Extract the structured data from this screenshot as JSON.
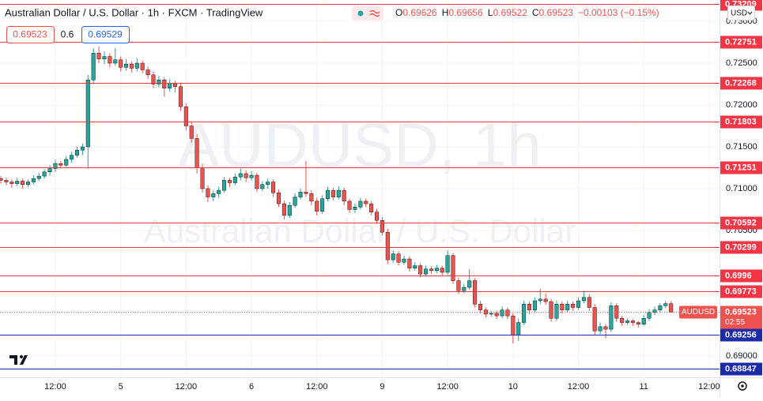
{
  "chart_data": {
    "type": "candlestick",
    "title": "Australian Dollar / U.S. Dollar · 1h · FXCM · TradingView",
    "readout": [
      [
        "O",
        "0.69626"
      ],
      [
        "H",
        "0.69656"
      ],
      [
        "L",
        "0.69522"
      ],
      [
        "C",
        "0.69523"
      ]
    ],
    "change": "−0.00103 (−0.15%)",
    "toolbar": {
      "sell": "0.69523",
      "spread": "0.6",
      "buy": "0.69529"
    },
    "currency": "USD",
    "watermark": [
      "AUDUSD, 1h",
      "Australian Dollar / U.S. Dollar"
    ],
    "up_color": "#26a69a",
    "down_color": "#ef5350",
    "grid": true,
    "xlim": [
      -0.15,
      131.9
    ],
    "xticks": [
      {
        "value": 10,
        "label": "12:00"
      },
      {
        "value": 22,
        "label": "5"
      },
      {
        "value": 34,
        "label": "12:00"
      },
      {
        "value": 46,
        "label": "6"
      },
      {
        "value": 58,
        "label": "12:00"
      },
      {
        "value": 70,
        "label": "9"
      },
      {
        "value": 82,
        "label": "12:00"
      },
      {
        "value": 94,
        "label": "10"
      },
      {
        "value": 106,
        "label": "12:00"
      },
      {
        "value": 118,
        "label": "11"
      },
      {
        "value": 130,
        "label": "12:00"
      }
    ],
    "ylim": [
      0.68745,
      0.73255
    ],
    "yticks": [
      {
        "value": 0.73,
        "label": "0.73000"
      },
      {
        "value": 0.725,
        "label": "0.72500"
      },
      {
        "value": 0.72,
        "label": "0.72000"
      },
      {
        "value": 0.715,
        "label": "0.71500"
      },
      {
        "value": 0.71,
        "label": "0.71000"
      },
      {
        "value": 0.705,
        "label": "0.70500"
      },
      {
        "value": 0.69,
        "label": "0.69000"
      }
    ],
    "levels": [
      {
        "value": 0.73209,
        "color": "#f23645"
      },
      {
        "value": 0.72751,
        "color": "#f23645"
      },
      {
        "value": 0.72268,
        "color": "#f23645"
      },
      {
        "value": 0.71803,
        "color": "#f23645"
      },
      {
        "value": 0.71251,
        "color": "#f23645"
      },
      {
        "value": 0.70592,
        "color": "#f23645"
      },
      {
        "value": 0.70299,
        "color": "#f23645"
      },
      {
        "value": 0.6996,
        "color": "#f23645"
      },
      {
        "value": 0.69773,
        "color": "#f23645"
      },
      {
        "value": 0.69256,
        "color": "#1a2ba8"
      },
      {
        "value": 0.68847,
        "color": "#1a2ba8"
      }
    ],
    "last": {
      "name": "AUDUSD",
      "value": 0.69523,
      "countdown": "02:55"
    },
    "ohlc": [
      [
        0.7112,
        0.7115,
        0.7106,
        0.711
      ],
      [
        0.711,
        0.7113,
        0.7104,
        0.7108
      ],
      [
        0.7108,
        0.7111,
        0.7101,
        0.7106
      ],
      [
        0.7106,
        0.7113,
        0.7103,
        0.7109
      ],
      [
        0.7109,
        0.7112,
        0.71,
        0.7105
      ],
      [
        0.7105,
        0.7111,
        0.7102,
        0.7108
      ],
      [
        0.7108,
        0.7116,
        0.7105,
        0.7112
      ],
      [
        0.7112,
        0.7119,
        0.7109,
        0.7115
      ],
      [
        0.7115,
        0.7123,
        0.7112,
        0.712
      ],
      [
        0.712,
        0.7128,
        0.7116,
        0.7124
      ],
      [
        0.7124,
        0.7135,
        0.712,
        0.713
      ],
      [
        0.713,
        0.7133,
        0.7124,
        0.7128
      ],
      [
        0.7128,
        0.7139,
        0.7126,
        0.7135
      ],
      [
        0.7135,
        0.7144,
        0.7131,
        0.714
      ],
      [
        0.714,
        0.715,
        0.7137,
        0.7146
      ],
      [
        0.7146,
        0.7154,
        0.714,
        0.715
      ],
      [
        0.715,
        0.7236,
        0.7124,
        0.723
      ],
      [
        0.723,
        0.7268,
        0.7226,
        0.7262
      ],
      [
        0.7262,
        0.727,
        0.725,
        0.7255
      ],
      [
        0.7255,
        0.7264,
        0.7249,
        0.7258
      ],
      [
        0.7258,
        0.7262,
        0.7245,
        0.725
      ],
      [
        0.725,
        0.7268,
        0.7247,
        0.7254
      ],
      [
        0.7254,
        0.7258,
        0.724,
        0.7245
      ],
      [
        0.7245,
        0.7255,
        0.7241,
        0.7249
      ],
      [
        0.7249,
        0.7252,
        0.7239,
        0.7244
      ],
      [
        0.7244,
        0.7256,
        0.724,
        0.725
      ],
      [
        0.725,
        0.7253,
        0.7238,
        0.7242
      ],
      [
        0.7242,
        0.7246,
        0.7231,
        0.7236
      ],
      [
        0.7236,
        0.724,
        0.722,
        0.7225
      ],
      [
        0.7225,
        0.7235,
        0.7221,
        0.723
      ],
      [
        0.723,
        0.7233,
        0.721,
        0.722
      ],
      [
        0.722,
        0.7231,
        0.7216,
        0.7226
      ],
      [
        0.7226,
        0.7229,
        0.7215,
        0.7222
      ],
      [
        0.7222,
        0.7226,
        0.7193,
        0.7198
      ],
      [
        0.7198,
        0.7202,
        0.717,
        0.7175
      ],
      [
        0.7175,
        0.718,
        0.7155,
        0.716
      ],
      [
        0.716,
        0.7165,
        0.7118,
        0.7125
      ],
      [
        0.7125,
        0.713,
        0.7095,
        0.71
      ],
      [
        0.71,
        0.7104,
        0.7084,
        0.709
      ],
      [
        0.709,
        0.7098,
        0.7085,
        0.7094
      ],
      [
        0.7094,
        0.7102,
        0.7089,
        0.7098
      ],
      [
        0.7098,
        0.7114,
        0.7095,
        0.711
      ],
      [
        0.711,
        0.7113,
        0.7102,
        0.7107
      ],
      [
        0.7107,
        0.7118,
        0.7104,
        0.7114
      ],
      [
        0.7114,
        0.7124,
        0.711,
        0.7118
      ],
      [
        0.7118,
        0.7122,
        0.7108,
        0.7113
      ],
      [
        0.7113,
        0.7121,
        0.711,
        0.7116
      ],
      [
        0.7116,
        0.7119,
        0.7096,
        0.71
      ],
      [
        0.71,
        0.7109,
        0.7097,
        0.7105
      ],
      [
        0.7105,
        0.7112,
        0.71,
        0.7108
      ],
      [
        0.7108,
        0.7111,
        0.709,
        0.7095
      ],
      [
        0.7095,
        0.7099,
        0.7078,
        0.7082
      ],
      [
        0.7082,
        0.7086,
        0.7063,
        0.7068
      ],
      [
        0.7068,
        0.7084,
        0.7065,
        0.708
      ],
      [
        0.708,
        0.7094,
        0.7077,
        0.709
      ],
      [
        0.709,
        0.71,
        0.7087,
        0.7096
      ],
      [
        0.7096,
        0.7133,
        0.709,
        0.7094
      ],
      [
        0.7094,
        0.7098,
        0.708,
        0.7085
      ],
      [
        0.7085,
        0.7089,
        0.7068,
        0.7073
      ],
      [
        0.7073,
        0.7092,
        0.707,
        0.7088
      ],
      [
        0.7088,
        0.7102,
        0.7085,
        0.7098
      ],
      [
        0.7098,
        0.7101,
        0.7086,
        0.709
      ],
      [
        0.709,
        0.7103,
        0.7087,
        0.7098
      ],
      [
        0.7098,
        0.7101,
        0.708,
        0.7085
      ],
      [
        0.7085,
        0.7088,
        0.7071,
        0.7075
      ],
      [
        0.7075,
        0.7082,
        0.7071,
        0.7078
      ],
      [
        0.7078,
        0.7089,
        0.7075,
        0.7085
      ],
      [
        0.7085,
        0.7088,
        0.7078,
        0.7082
      ],
      [
        0.7082,
        0.7085,
        0.7068,
        0.7072
      ],
      [
        0.7072,
        0.7076,
        0.7058,
        0.7062
      ],
      [
        0.7062,
        0.7066,
        0.7044,
        0.7048
      ],
      [
        0.7048,
        0.7052,
        0.701,
        0.7015
      ],
      [
        0.7015,
        0.7026,
        0.7011,
        0.7022
      ],
      [
        0.7022,
        0.7025,
        0.7008,
        0.7012
      ],
      [
        0.7012,
        0.702,
        0.7009,
        0.7016
      ],
      [
        0.7016,
        0.7019,
        0.7001,
        0.7005
      ],
      [
        0.7005,
        0.7012,
        0.7002,
        0.7008
      ],
      [
        0.7008,
        0.7011,
        0.6994,
        0.6998
      ],
      [
        0.6998,
        0.7008,
        0.6995,
        0.7004
      ],
      [
        0.7004,
        0.7007,
        0.6998,
        0.7002
      ],
      [
        0.7002,
        0.7009,
        0.6999,
        0.7005
      ],
      [
        0.7005,
        0.7008,
        0.6996,
        0.7
      ],
      [
        0.7,
        0.7026,
        0.6997,
        0.702
      ],
      [
        0.702,
        0.7023,
        0.6986,
        0.699
      ],
      [
        0.699,
        0.6994,
        0.6974,
        0.6978
      ],
      [
        0.6978,
        0.6986,
        0.6975,
        0.6982
      ],
      [
        0.6982,
        0.7004,
        0.6979,
        0.699
      ],
      [
        0.699,
        0.6993,
        0.6958,
        0.6962
      ],
      [
        0.6962,
        0.6966,
        0.6951,
        0.6955
      ],
      [
        0.6955,
        0.6958,
        0.6946,
        0.695
      ],
      [
        0.695,
        0.6954,
        0.6947,
        0.6951
      ],
      [
        0.6951,
        0.6954,
        0.6944,
        0.6948
      ],
      [
        0.6948,
        0.6959,
        0.6945,
        0.6955
      ],
      [
        0.6955,
        0.6958,
        0.6944,
        0.6948
      ],
      [
        0.6948,
        0.6951,
        0.6915,
        0.6925
      ],
      [
        0.6925,
        0.6945,
        0.6918,
        0.694
      ],
      [
        0.694,
        0.6966,
        0.6937,
        0.6962
      ],
      [
        0.6962,
        0.6965,
        0.695,
        0.6955
      ],
      [
        0.6955,
        0.697,
        0.6952,
        0.6966
      ],
      [
        0.6966,
        0.698,
        0.6962,
        0.6968
      ],
      [
        0.6968,
        0.6975,
        0.6961,
        0.6965
      ],
      [
        0.6965,
        0.6968,
        0.6941,
        0.6945
      ],
      [
        0.6945,
        0.6966,
        0.6942,
        0.6962
      ],
      [
        0.6962,
        0.6965,
        0.6951,
        0.6955
      ],
      [
        0.6955,
        0.6966,
        0.6952,
        0.6962
      ],
      [
        0.6962,
        0.6965,
        0.6954,
        0.6958
      ],
      [
        0.6958,
        0.697,
        0.6955,
        0.6966
      ],
      [
        0.6966,
        0.6978,
        0.6963,
        0.697
      ],
      [
        0.697,
        0.6974,
        0.6954,
        0.6958
      ],
      [
        0.6958,
        0.6962,
        0.6925,
        0.693
      ],
      [
        0.693,
        0.694,
        0.6926,
        0.6935
      ],
      [
        0.6935,
        0.6938,
        0.6921,
        0.6932
      ],
      [
        0.6932,
        0.6964,
        0.6929,
        0.696
      ],
      [
        0.696,
        0.6963,
        0.6941,
        0.6945
      ],
      [
        0.6945,
        0.6948,
        0.6936,
        0.694
      ],
      [
        0.694,
        0.6945,
        0.6937,
        0.6942
      ],
      [
        0.6942,
        0.6944,
        0.6936,
        0.694
      ],
      [
        0.694,
        0.6942,
        0.6934,
        0.6938
      ],
      [
        0.6938,
        0.6949,
        0.6936,
        0.6945
      ],
      [
        0.6945,
        0.6956,
        0.6942,
        0.6952
      ],
      [
        0.6952,
        0.6959,
        0.6949,
        0.6955
      ],
      [
        0.6955,
        0.6963,
        0.6952,
        0.696
      ],
      [
        0.696,
        0.6966,
        0.6957,
        0.69626
      ],
      [
        0.69626,
        0.69656,
        0.69522,
        0.69523
      ]
    ]
  }
}
